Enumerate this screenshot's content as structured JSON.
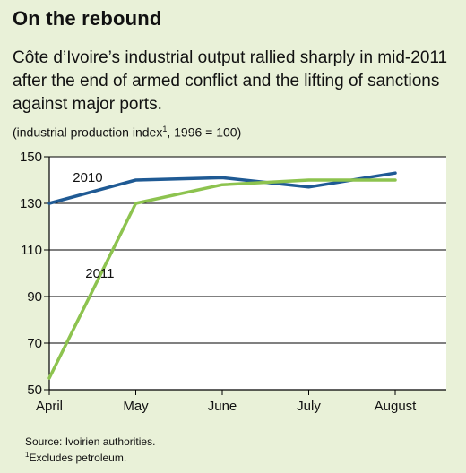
{
  "title": "On the rebound",
  "subtitle": "Côte d’Ivoire’s industrial output rallied sharply in mid-2011 after the end of armed conflict and the lifting of sanctions against major ports.",
  "units_text": "(industrial production index",
  "units_sup": "1",
  "units_tail": ", 1996 = 100)",
  "source": "Source: Ivoirien authorities.",
  "note_sup": "1",
  "note_text": "Excludes petroleum.",
  "colors": {
    "background": "#e9f1d8",
    "plot_background": "#ffffff",
    "series_2010": "#1f5a94",
    "series_2011": "#8dc34f"
  },
  "chart_data": {
    "type": "line",
    "categories": [
      "April",
      "May",
      "June",
      "July",
      "August"
    ],
    "yticks": [
      50,
      70,
      90,
      110,
      130,
      150
    ],
    "ylim": [
      50,
      150
    ],
    "grid": true,
    "series": [
      {
        "name": "2010",
        "color": "#1f5a94",
        "values": [
          130,
          140,
          141,
          137,
          143
        ]
      },
      {
        "name": "2011",
        "color": "#8dc34f",
        "values": [
          55,
          130,
          138,
          140,
          140
        ]
      }
    ]
  }
}
